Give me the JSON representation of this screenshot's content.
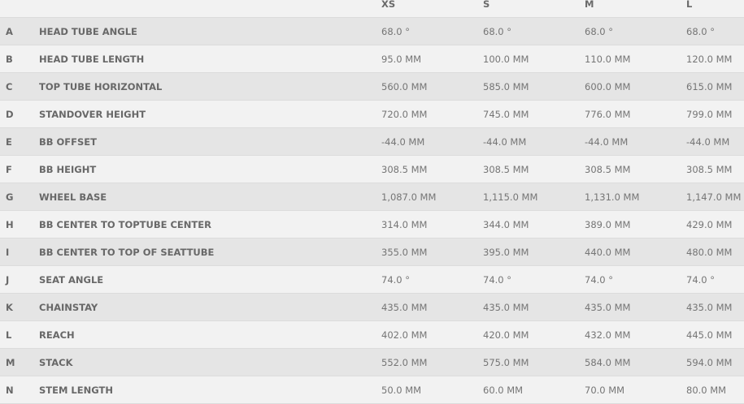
{
  "header": {
    "sizes": [
      "XS",
      "S",
      "M",
      "L"
    ]
  },
  "rows": [
    {
      "letter": "A",
      "label": "HEAD TUBE ANGLE",
      "values": [
        "68.0 °",
        "68.0 °",
        "68.0 °",
        "68.0 °"
      ]
    },
    {
      "letter": "B",
      "label": "HEAD TUBE LENGTH",
      "values": [
        "95.0 MM",
        "100.0 MM",
        "110.0 MM",
        "120.0 MM"
      ]
    },
    {
      "letter": "C",
      "label": "TOP TUBE HORIZONTAL",
      "values": [
        "560.0 MM",
        "585.0 MM",
        "600.0 MM",
        "615.0 MM"
      ]
    },
    {
      "letter": "D",
      "label": "STANDOVER HEIGHT",
      "values": [
        "720.0 MM",
        "745.0 MM",
        "776.0 MM",
        "799.0 MM"
      ]
    },
    {
      "letter": "E",
      "label": "BB OFFSET",
      "values": [
        "-44.0 MM",
        "-44.0 MM",
        "-44.0 MM",
        "-44.0 MM"
      ]
    },
    {
      "letter": "F",
      "label": "BB HEIGHT",
      "values": [
        "308.5 MM",
        "308.5 MM",
        "308.5 MM",
        "308.5 MM"
      ]
    },
    {
      "letter": "G",
      "label": "WHEEL BASE",
      "values": [
        "1,087.0 MM",
        "1,115.0 MM",
        "1,131.0 MM",
        "1,147.0 MM"
      ]
    },
    {
      "letter": "H",
      "label": "BB CENTER TO TOPTUBE CENTER",
      "values": [
        "314.0 MM",
        "344.0 MM",
        "389.0 MM",
        "429.0 MM"
      ]
    },
    {
      "letter": "I",
      "label": "BB CENTER TO TOP OF SEATTUBE",
      "values": [
        "355.0 MM",
        "395.0 MM",
        "440.0 MM",
        "480.0 MM"
      ]
    },
    {
      "letter": "J",
      "label": "SEAT ANGLE",
      "values": [
        "74.0 °",
        "74.0 °",
        "74.0 °",
        "74.0 °"
      ]
    },
    {
      "letter": "K",
      "label": "CHAINSTAY",
      "values": [
        "435.0 MM",
        "435.0 MM",
        "435.0 MM",
        "435.0 MM"
      ]
    },
    {
      "letter": "L",
      "label": "REACH",
      "values": [
        "402.0 MM",
        "420.0 MM",
        "432.0 MM",
        "445.0 MM"
      ]
    },
    {
      "letter": "M",
      "label": "STACK",
      "values": [
        "552.0 MM",
        "575.0 MM",
        "584.0 MM",
        "594.0 MM"
      ]
    },
    {
      "letter": "N",
      "label": "STEM LENGTH",
      "values": [
        "50.0 MM",
        "60.0 MM",
        "70.0 MM",
        "80.0 MM"
      ]
    }
  ]
}
